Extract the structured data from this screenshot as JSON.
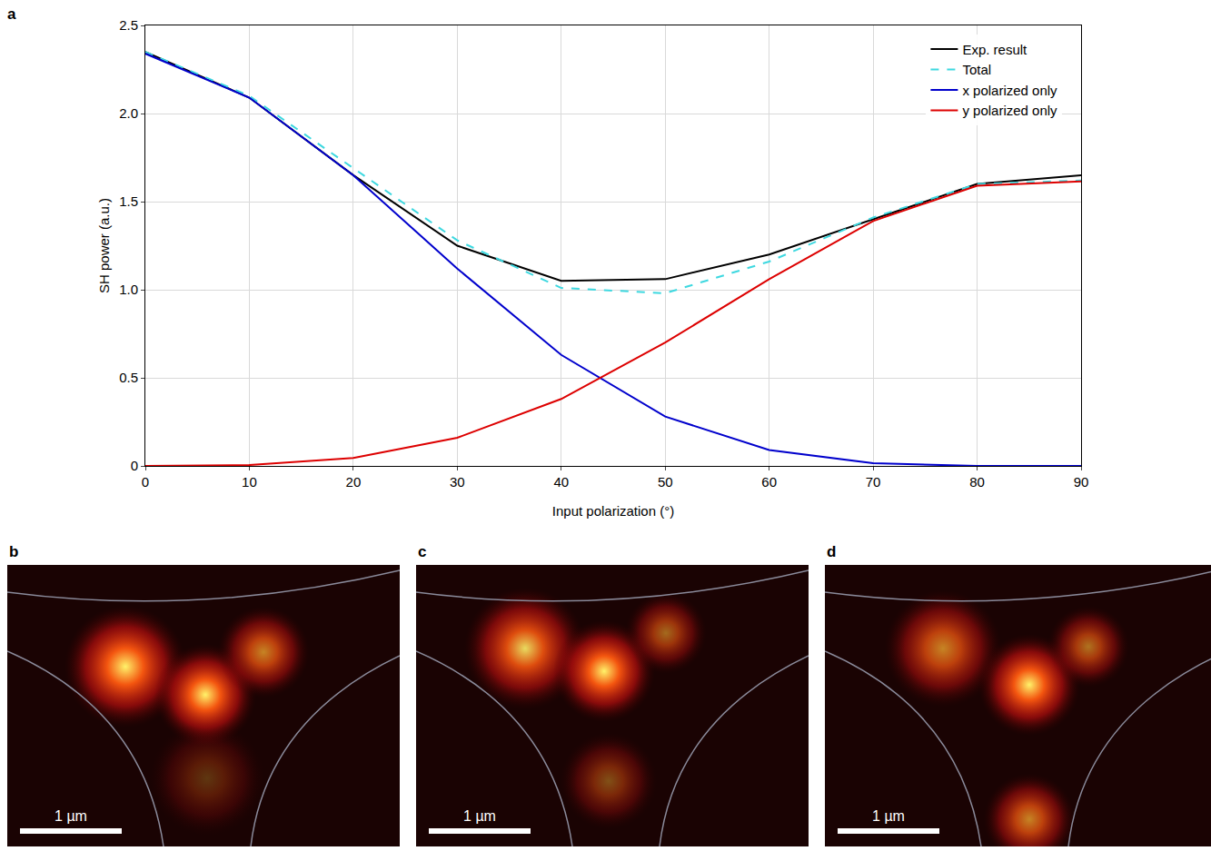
{
  "chart_data": {
    "type": "line",
    "panel": "a",
    "x_label": "Input polarization (°)",
    "y_label": "SH power (a.u.)",
    "x": [
      0,
      10,
      20,
      30,
      40,
      50,
      60,
      70,
      80,
      90
    ],
    "series": [
      {
        "name": "Exp. result",
        "color": "#000000",
        "line_style": "solid",
        "values": [
          2.35,
          2.09,
          1.65,
          1.25,
          1.05,
          1.06,
          1.2,
          1.4,
          1.6,
          1.65
        ]
      },
      {
        "name": "Total",
        "color": "#3ed8e0",
        "line_style": "dashed",
        "values": [
          2.35,
          2.1,
          1.69,
          1.28,
          1.01,
          0.98,
          1.16,
          1.41,
          1.6,
          1.62
        ]
      },
      {
        "name": "x polarized only",
        "color": "#0000cc",
        "line_style": "solid",
        "values": [
          2.34,
          2.09,
          1.65,
          1.12,
          0.63,
          0.28,
          0.09,
          0.015,
          0.0,
          0.0
        ]
      },
      {
        "name": "y polarized only",
        "color": "#dd0000",
        "line_style": "solid",
        "values": [
          0.0,
          0.005,
          0.045,
          0.16,
          0.38,
          0.7,
          1.06,
          1.39,
          1.59,
          1.615
        ]
      }
    ],
    "xlim": [
      0,
      90
    ],
    "xticks": [
      0,
      10,
      20,
      30,
      40,
      50,
      60,
      70,
      80,
      90
    ],
    "ylim": [
      0,
      2.5
    ],
    "yticks": [
      0,
      0.5,
      {
        "value": 1,
        "label": "1.0"
      },
      1.5,
      {
        "value": 2,
        "label": "2.0"
      },
      2.5
    ],
    "grid": true,
    "legend": "upper right"
  },
  "image_panels": [
    {
      "panel": "b",
      "scale_bar": "1 µm"
    },
    {
      "panel": "c",
      "scale_bar": "1 µm"
    },
    {
      "panel": "d",
      "scale_bar": "1 µm"
    }
  ]
}
